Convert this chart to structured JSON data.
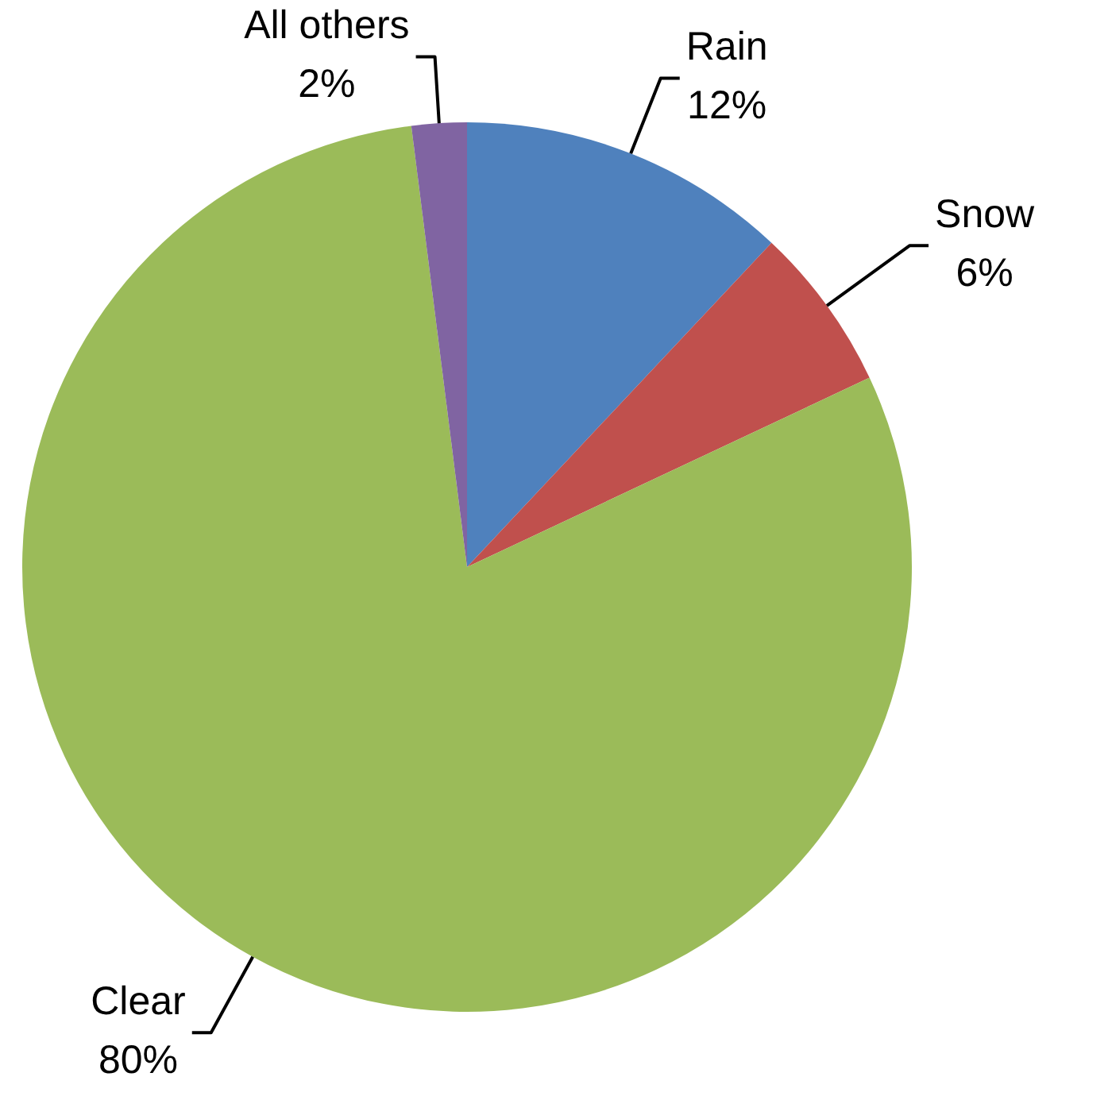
{
  "chart_data": {
    "type": "pie",
    "categories": [
      "Rain",
      "Snow",
      "Clear",
      "All others"
    ],
    "values": [
      12,
      6,
      80,
      2
    ],
    "colors": [
      "#4f81bd",
      "#c0504d",
      "#9bbb59",
      "#8064a2"
    ],
    "value_labels": [
      "12%",
      "6%",
      "80%",
      "2%"
    ]
  }
}
